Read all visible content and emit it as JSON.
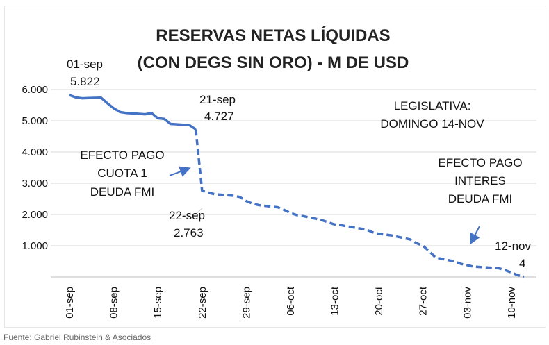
{
  "chart_data": {
    "type": "line",
    "title": "RESERVAS NETAS LÍQUIDAS",
    "subtitle": "(CON DEGS SIN ORO) - M DE USD",
    "xlabel": "",
    "ylabel": "",
    "ylim": [
      0,
      6000
    ],
    "y_ticks": [
      1000,
      2000,
      3000,
      4000,
      5000,
      6000
    ],
    "y_tick_labels": [
      "1.000",
      "2.000",
      "3.000",
      "4.000",
      "5.000",
      "6.000"
    ],
    "x_tick_labels": [
      "01-sep",
      "08-sep",
      "15-sep",
      "22-sep",
      "29-sep",
      "06-oct",
      "13-oct",
      "20-oct",
      "27-oct",
      "03-nov",
      "10-nov"
    ],
    "grid": true,
    "legend": "none",
    "color": "#4472c4",
    "series": [
      {
        "x": [
          "2021-09-01",
          "2021-09-02",
          "2021-09-03",
          "2021-09-06",
          "2021-09-07",
          "2021-09-08",
          "2021-09-09",
          "2021-09-10",
          "2021-09-13",
          "2021-09-14",
          "2021-09-15",
          "2021-09-16",
          "2021-09-17",
          "2021-09-20",
          "2021-09-21"
        ],
        "values": [
          5822,
          5750,
          5720,
          5740,
          5560,
          5400,
          5280,
          5250,
          5210,
          5250,
          5080,
          5060,
          4900,
          4860,
          4727
        ],
        "style": "solid"
      },
      {
        "x": [
          "2021-09-21",
          "2021-09-22",
          "2021-09-23",
          "2021-09-24",
          "2021-09-27",
          "2021-09-28",
          "2021-09-29",
          "2021-09-30",
          "2021-10-01",
          "2021-10-04",
          "2021-10-05",
          "2021-10-06",
          "2021-10-07",
          "2021-10-08",
          "2021-10-11",
          "2021-10-12",
          "2021-10-13",
          "2021-10-14",
          "2021-10-15",
          "2021-10-18",
          "2021-10-19",
          "2021-10-20",
          "2021-10-21",
          "2021-10-22",
          "2021-10-25",
          "2021-10-26",
          "2021-10-27",
          "2021-10-28",
          "2021-10-29",
          "2021-11-01",
          "2021-11-02",
          "2021-11-03",
          "2021-11-04",
          "2021-11-05",
          "2021-11-08",
          "2021-11-09",
          "2021-11-10",
          "2021-11-11",
          "2021-11-12"
        ],
        "values": [
          4727,
          2763,
          2700,
          2650,
          2600,
          2560,
          2430,
          2350,
          2300,
          2230,
          2150,
          2050,
          1980,
          1950,
          1820,
          1750,
          1680,
          1660,
          1620,
          1520,
          1430,
          1380,
          1360,
          1330,
          1200,
          1080,
          1000,
          820,
          620,
          500,
          420,
          380,
          330,
          320,
          280,
          220,
          140,
          60,
          4
        ],
        "style": "dashed"
      }
    ],
    "annotations": [
      {
        "lines": [
          "01-sep",
          "5.822"
        ]
      },
      {
        "lines": [
          "21-sep",
          "4.727"
        ]
      },
      {
        "lines": [
          "22-sep",
          "2.763"
        ]
      },
      {
        "lines": [
          "12-nov",
          "4"
        ]
      },
      {
        "lines": [
          "LEGISLATIVA:",
          "DOMINGO 14-NOV"
        ]
      },
      {
        "lines": [
          "EFECTO PAGO",
          "CUOTA 1",
          "DEUDA FMI"
        ]
      },
      {
        "lines": [
          "EFECTO PAGO",
          "INTERES",
          "DEUDA FMI"
        ]
      }
    ]
  },
  "source": "Fuente: Gabriel Rubinstein & Asociados"
}
